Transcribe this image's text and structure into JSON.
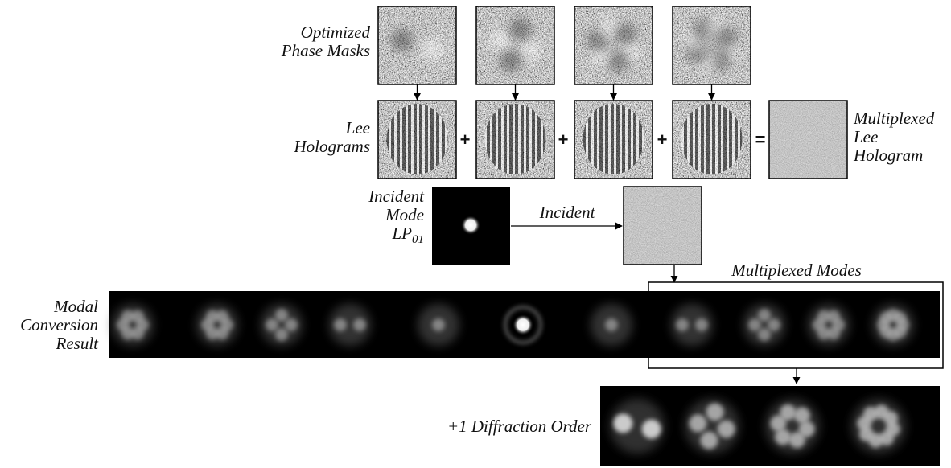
{
  "labels": {
    "optimized_phase_masks": [
      "Optimized",
      "Phase Masks"
    ],
    "lee_holograms": [
      "Lee",
      "Holograms"
    ],
    "operators": [
      "+",
      "+",
      "+",
      "="
    ],
    "multiplexed_lee_hologram": [
      "Multiplexed",
      "Lee",
      "Hologram"
    ],
    "incident_mode": [
      "Incident",
      "Mode"
    ],
    "incident_mode_symbol": {
      "base": "LP",
      "subscript": "01"
    },
    "incident_arrow": "Incident",
    "multiplexed_modes": "Multiplexed Modes",
    "modal_conversion_result": [
      "Modal",
      "Conversion",
      "Result"
    ],
    "diffraction_order": "+1 Diffraction Order"
  }
}
